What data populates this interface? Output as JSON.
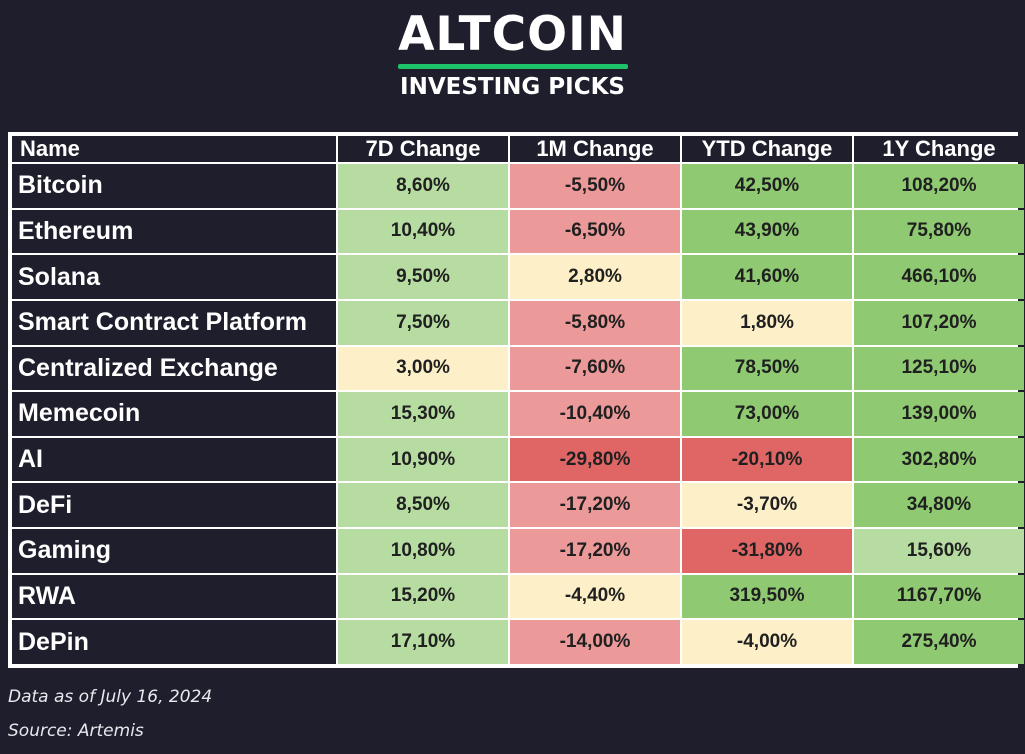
{
  "brand": {
    "title": "ALTCOIN",
    "subtitle": "INVESTING PICKS",
    "accent_color": "#1ec26a"
  },
  "colors": {
    "background": "#1e1e2c",
    "grid": "#ffffff",
    "strong_green": "#8fca72",
    "light_green": "#b6dca2",
    "neutral": "#fdf0c8",
    "light_red": "#eb9999",
    "strong_red": "#e06666"
  },
  "chart_data": {
    "type": "table",
    "columns": [
      "Name",
      "7D Change",
      "1M Change",
      "YTD Change",
      "1Y Change"
    ],
    "rows": [
      {
        "name": "Bitcoin",
        "values": [
          "8,60%",
          "-5,50%",
          "42,50%",
          "108,20%"
        ],
        "tones": [
          "light_green",
          "light_red",
          "strong_green",
          "strong_green"
        ]
      },
      {
        "name": "Ethereum",
        "values": [
          "10,40%",
          "-6,50%",
          "43,90%",
          "75,80%"
        ],
        "tones": [
          "light_green",
          "light_red",
          "strong_green",
          "strong_green"
        ]
      },
      {
        "name": "Solana",
        "values": [
          "9,50%",
          "2,80%",
          "41,60%",
          "466,10%"
        ],
        "tones": [
          "light_green",
          "neutral",
          "strong_green",
          "strong_green"
        ]
      },
      {
        "name": "Smart Contract Platform",
        "values": [
          "7,50%",
          "-5,80%",
          "1,80%",
          "107,20%"
        ],
        "tones": [
          "light_green",
          "light_red",
          "neutral",
          "strong_green"
        ]
      },
      {
        "name": "Centralized Exchange",
        "values": [
          "3,00%",
          "-7,60%",
          "78,50%",
          "125,10%"
        ],
        "tones": [
          "neutral",
          "light_red",
          "strong_green",
          "strong_green"
        ]
      },
      {
        "name": "Memecoin",
        "values": [
          "15,30%",
          "-10,40%",
          "73,00%",
          "139,00%"
        ],
        "tones": [
          "light_green",
          "light_red",
          "strong_green",
          "strong_green"
        ]
      },
      {
        "name": "AI",
        "values": [
          "10,90%",
          "-29,80%",
          "-20,10%",
          "302,80%"
        ],
        "tones": [
          "light_green",
          "strong_red",
          "strong_red",
          "strong_green"
        ]
      },
      {
        "name": "DeFi",
        "values": [
          "8,50%",
          "-17,20%",
          "-3,70%",
          "34,80%"
        ],
        "tones": [
          "light_green",
          "light_red",
          "neutral",
          "strong_green"
        ]
      },
      {
        "name": "Gaming",
        "values": [
          "10,80%",
          "-17,20%",
          "-31,80%",
          "15,60%"
        ],
        "tones": [
          "light_green",
          "light_red",
          "strong_red",
          "light_green"
        ]
      },
      {
        "name": "RWA",
        "values": [
          "15,20%",
          "-4,40%",
          "319,50%",
          "1167,70%"
        ],
        "tones": [
          "light_green",
          "neutral",
          "strong_green",
          "strong_green"
        ]
      },
      {
        "name": "DePin",
        "values": [
          "17,10%",
          "-14,00%",
          "-4,00%",
          "275,40%"
        ],
        "tones": [
          "light_green",
          "light_red",
          "neutral",
          "strong_green"
        ]
      }
    ]
  },
  "footer": {
    "date_note": "Data as of July 16, 2024",
    "source_note": "Source: Artemis"
  }
}
